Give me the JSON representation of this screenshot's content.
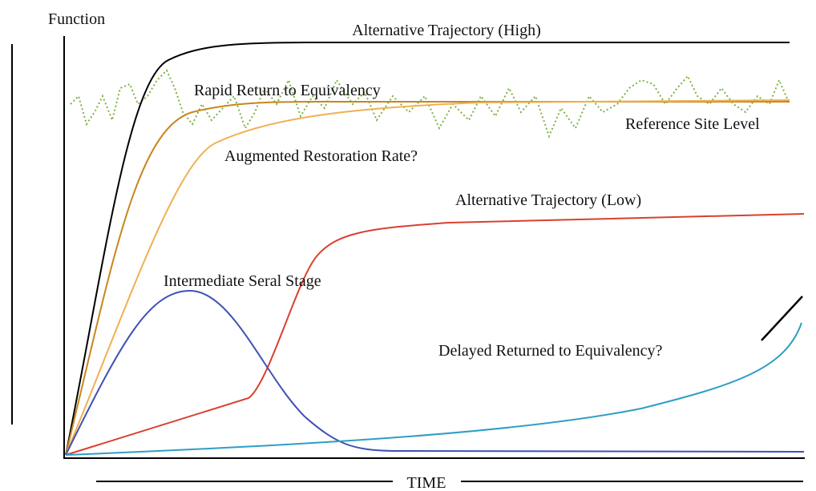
{
  "axes": {
    "y_label": "Function",
    "x_label": "TIME"
  },
  "curves": {
    "high": "Alternative Trajectory (High)",
    "rapid": "Rapid Return to Equivalency",
    "reference": "Reference Site Level",
    "augmented": "Augmented Restoration Rate?",
    "low": "Alternative Trajectory (Low)",
    "seral": "Intermediate Seral Stage",
    "delayed": "Delayed Returned to Equivalency?"
  }
}
